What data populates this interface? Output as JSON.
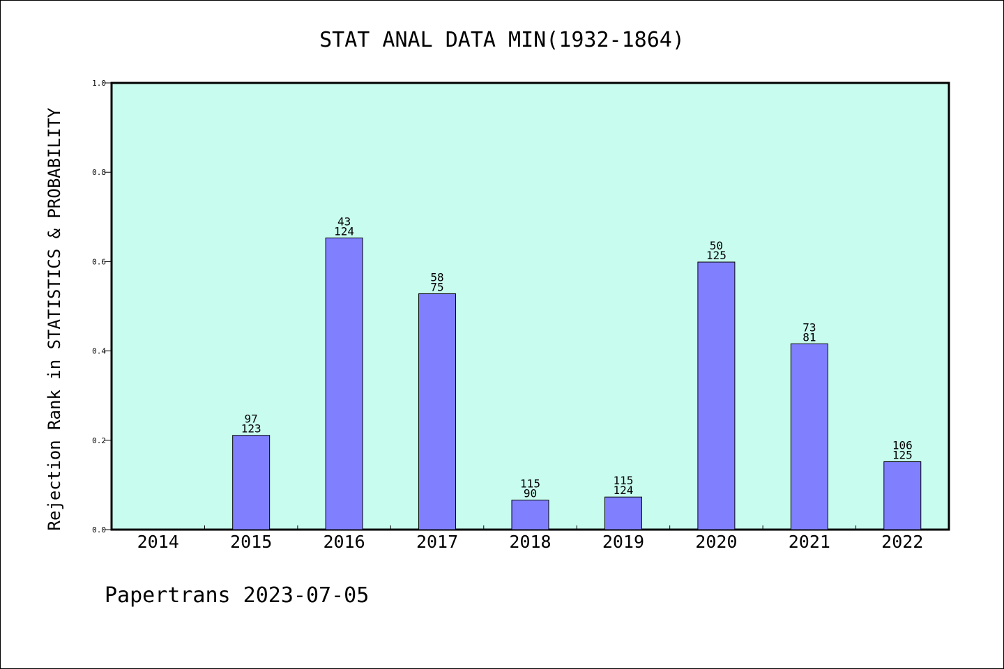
{
  "chart_data": {
    "type": "bar",
    "title": "STAT ANAL DATA MIN(1932-1864)",
    "xlabel": "",
    "ylabel": "Rejection Rank in STATISTICS & PROBABILITY",
    "footer": "Papertrans 2023-07-05",
    "ylim": [
      0,
      1.0
    ],
    "yticks": [
      "0.0",
      "0.2",
      "0.4",
      "0.6",
      "0.8",
      "1.0"
    ],
    "categories": [
      "2014",
      "2015",
      "2016",
      "2017",
      "2018",
      "2019",
      "2020",
      "2021",
      "2022"
    ],
    "values": [
      0,
      0.211,
      0.653,
      0.528,
      0.066,
      0.073,
      0.599,
      0.416,
      0.152
    ],
    "labels_top": [
      "",
      "97",
      "43",
      "58",
      "115",
      "115",
      "50",
      "73",
      "106"
    ],
    "labels_bottom": [
      "",
      "123",
      "124",
      "75",
      "90",
      "124",
      "125",
      "81",
      "125"
    ],
    "grid": false,
    "colors": {
      "plot_bg": "#c8fcee",
      "bar": "#8080ff",
      "bar_edge": "#000000",
      "axis": "#000000"
    }
  }
}
